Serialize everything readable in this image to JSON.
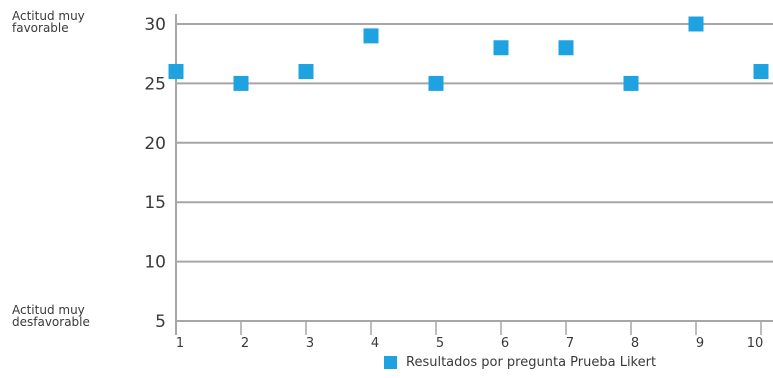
{
  "chart_data": {
    "type": "scatter",
    "x": [
      1,
      2,
      3,
      4,
      5,
      6,
      7,
      8,
      9,
      10
    ],
    "series": [
      {
        "name": "Resultados por pregunta Prueba Likert",
        "values": [
          26,
          25,
          26,
          29,
          25,
          28,
          28,
          25,
          30,
          26
        ]
      }
    ],
    "yticks": [
      5,
      10,
      15,
      20,
      25,
      30
    ],
    "xticks": [
      1,
      2,
      3,
      4,
      5,
      6,
      7,
      8,
      9,
      10
    ],
    "ylim": [
      5,
      30
    ],
    "xlim": [
      1,
      10
    ],
    "grid": "horizontal",
    "legend_position": "bottom-center",
    "marker": "square",
    "marker_color": "#1fa3e0",
    "grid_color": "#a6a6a6",
    "side_labels": {
      "top": [
        "Actitud muy",
        "favorable"
      ],
      "bottom": [
        "Actitud muy",
        "desfavorable"
      ]
    }
  }
}
